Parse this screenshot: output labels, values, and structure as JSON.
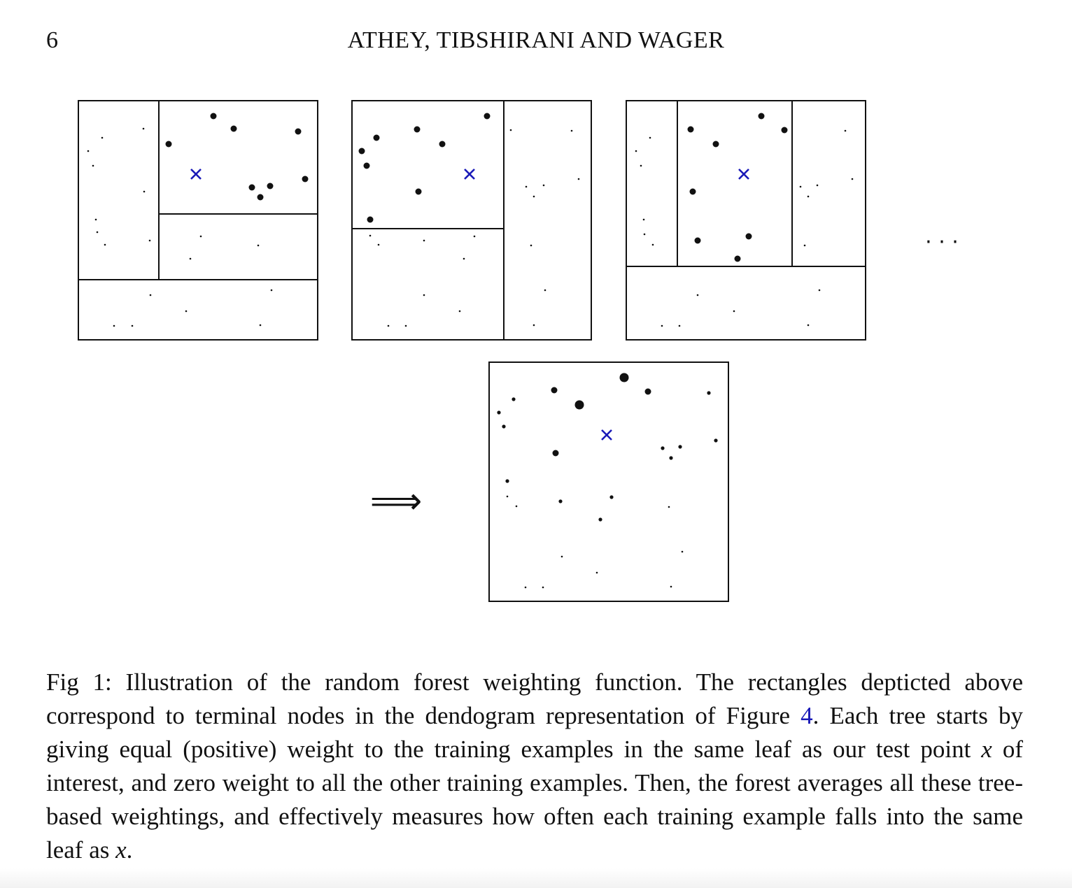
{
  "header": {
    "page_number": "6",
    "running_head": "ATHEY, TIBSHIRANI AND WAGER"
  },
  "figure": {
    "implies_symbol": "⟹",
    "continuation": "· · ·",
    "test_point_marker": "×",
    "colors": {
      "test_point": "#1a1ab8",
      "ink": "#111111"
    }
  },
  "caption": {
    "label": "Fig 1:",
    "text_1": " Illustration of the random forest weighting function. The rectangles depticted above correspond to terminal nodes in the dendogram representation of Figure ",
    "ref": "4",
    "text_2": ". Each tree starts by giving equal (positive) weight to the training examples in the same leaf as our test point ",
    "var_1": "x",
    "text_3": " of interest, and zero weight to all the other training examples. Then, the forest averages all these tree-based weightings, and effectively measures how often each training example falls into the same leaf as ",
    "var_2": "x",
    "text_4": "."
  }
}
